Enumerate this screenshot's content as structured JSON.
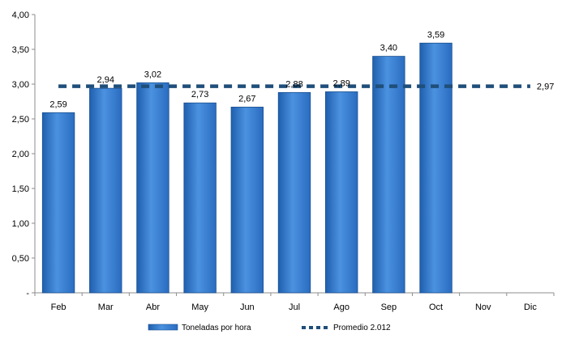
{
  "chart_data": {
    "type": "bar",
    "categories": [
      "Feb",
      "Mar",
      "Abr",
      "May",
      "Jun",
      "Jul",
      "Ago",
      "Sep",
      "Oct",
      "Nov",
      "Dic"
    ],
    "series": [
      {
        "name": "Toneladas por hora",
        "type": "bar",
        "values": [
          2.59,
          2.94,
          3.02,
          2.73,
          2.67,
          2.88,
          2.89,
          3.4,
          3.59,
          null,
          null
        ],
        "labels": [
          "2,59",
          "2,94",
          "3,02",
          "2,73",
          "2,67",
          "2,88",
          "2,89",
          "3,40",
          "3,59",
          "",
          ""
        ],
        "color": "#3a7fd0"
      },
      {
        "name": "Promedio 2.012",
        "type": "line",
        "style": "dashed",
        "value": 2.97,
        "label": "2,97",
        "color": "#1f4e79"
      }
    ],
    "y_ticks": [
      "-",
      "0,50",
      "1,00",
      "1,50",
      "2,00",
      "2,50",
      "3,00",
      "3,50",
      "4,00"
    ],
    "ylim": [
      0,
      4
    ],
    "grid": false,
    "legend": "bottom"
  }
}
